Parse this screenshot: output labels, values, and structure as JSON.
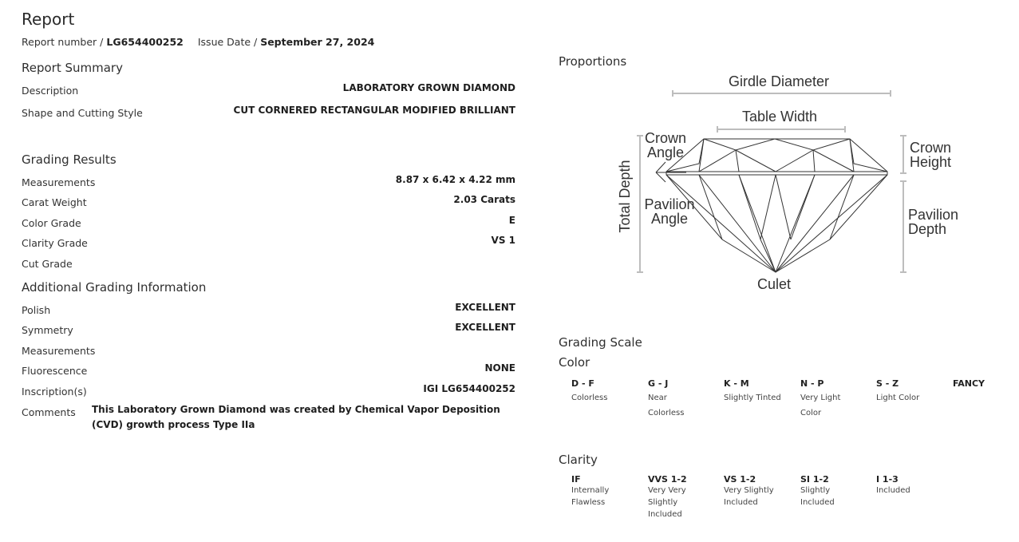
{
  "header": {
    "title": "Report",
    "report_number_label": "Report number /",
    "report_number": "LG654400252",
    "issue_date_label": "Issue Date /",
    "issue_date": "September 27, 2024"
  },
  "summary": {
    "title": "Report Summary",
    "rows": [
      {
        "label": "Description",
        "value": "LABORATORY GROWN DIAMOND"
      },
      {
        "label": "Shape and Cutting Style",
        "value": "CUT CORNERED RECTANGULAR MODIFIED BRILLIANT"
      }
    ]
  },
  "grading": {
    "title": "Grading Results",
    "rows": [
      {
        "label": "Measurements",
        "value": "8.87 x 6.42 x 4.22 mm"
      },
      {
        "label": "Carat Weight",
        "value": "2.03 Carats"
      },
      {
        "label": "Color Grade",
        "value": "E"
      },
      {
        "label": "Clarity Grade",
        "value": "VS 1"
      },
      {
        "label": "Cut Grade",
        "value": ""
      }
    ]
  },
  "additional": {
    "title": "Additional Grading Information",
    "rows": [
      {
        "label": "Polish",
        "value": "EXCELLENT"
      },
      {
        "label": "Symmetry",
        "value": "EXCELLENT"
      },
      {
        "label": "Measurements",
        "value": ""
      },
      {
        "label": "Fluorescence",
        "value": "NONE"
      },
      {
        "label": "Inscription(s)",
        "value": "IGI LG654400252"
      },
      {
        "label": "Comments",
        "value": "This Laboratory Grown Diamond was created by Chemical Vapor Deposition (CVD) growth process Type IIa"
      }
    ]
  },
  "proportions": {
    "title": "Proportions",
    "labels": {
      "girdle_diameter": "Girdle Diameter",
      "table_width": "Table Width",
      "crown_angle_1": "Crown",
      "crown_angle_2": "Angle",
      "crown_height_1": "Crown",
      "crown_height_2": "Height",
      "total_depth": "Total Depth",
      "pavilion_angle_1": "Pavilion",
      "pavilion_angle_2": "Angle",
      "pavilion_depth_1": "Pavilion",
      "pavilion_depth_2": "Depth",
      "culet": "Culet"
    }
  },
  "grading_scale": {
    "title": "Grading Scale",
    "color": {
      "title": "Color",
      "items": [
        {
          "grade": "D - F",
          "desc": [
            "Colorless"
          ]
        },
        {
          "grade": "G - J",
          "desc": [
            "Near",
            "Colorless"
          ]
        },
        {
          "grade": "K - M",
          "desc": [
            "Slightly Tinted"
          ]
        },
        {
          "grade": "N - P",
          "desc": [
            "Very Light",
            "Color"
          ]
        },
        {
          "grade": "S - Z",
          "desc": [
            "Light Color"
          ]
        },
        {
          "grade": "FANCY",
          "desc": []
        }
      ]
    },
    "clarity": {
      "title": "Clarity",
      "items": [
        {
          "grade": "IF",
          "desc": [
            "Internally",
            "Flawless"
          ]
        },
        {
          "grade": "VVS 1-2",
          "desc": [
            "Very Very",
            "Slightly",
            "Included"
          ]
        },
        {
          "grade": "VS 1-2",
          "desc": [
            "Very Slightly",
            "Included"
          ]
        },
        {
          "grade": "SI 1-2",
          "desc": [
            "Slightly",
            "Included"
          ]
        },
        {
          "grade": "I 1-3",
          "desc": [
            "Included"
          ]
        }
      ]
    }
  }
}
